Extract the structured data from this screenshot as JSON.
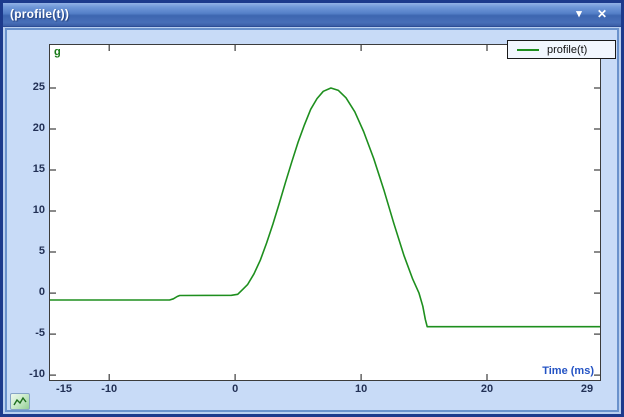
{
  "window": {
    "title": "(profile(t))",
    "controls": {
      "menu_icon": "▾",
      "close_icon": "✕"
    }
  },
  "chart_data": {
    "type": "line",
    "title": "",
    "x_title": "Time (ms)",
    "y_unit_label": "g",
    "xlim": [
      -14.7,
      28.97
    ],
    "ylim": [
      -10.6,
      30.24
    ],
    "grid": false,
    "x_tick_marks": [
      -10,
      0,
      10,
      20
    ],
    "x_tick_labels": [
      {
        "value": -15,
        "label": "-15"
      },
      {
        "value": -10,
        "label": "-10"
      },
      {
        "value": 0,
        "label": "0"
      },
      {
        "value": 10,
        "label": "10"
      },
      {
        "value": 20,
        "label": "20"
      },
      {
        "value": 29,
        "label": "29"
      }
    ],
    "y_tick_labels": [
      25,
      20,
      15,
      10,
      5,
      0,
      -5,
      -10
    ],
    "legend": {
      "position": "top-right",
      "entries": [
        {
          "label": "profile(t)",
          "color": "#1e8f1e"
        }
      ]
    },
    "series": [
      {
        "name": "profile(t)",
        "color": "#1e8f1e",
        "points": [
          [
            -14.7,
            -0.85
          ],
          [
            -5.2,
            -0.85
          ],
          [
            -4.9,
            -0.7
          ],
          [
            -4.6,
            -0.42
          ],
          [
            -4.4,
            -0.3
          ],
          [
            -0.3,
            -0.28
          ],
          [
            0.2,
            -0.15
          ],
          [
            0.6,
            0.45
          ],
          [
            1,
            1.05
          ],
          [
            1.5,
            2.35
          ],
          [
            2,
            4.0
          ],
          [
            2.5,
            6.1
          ],
          [
            3,
            8.4
          ],
          [
            3.5,
            10.9
          ],
          [
            4,
            13.5
          ],
          [
            4.5,
            16.0
          ],
          [
            5,
            18.4
          ],
          [
            5.5,
            20.5
          ],
          [
            6,
            22.4
          ],
          [
            6.5,
            23.7
          ],
          [
            7,
            24.6
          ],
          [
            7.6,
            25.0
          ],
          [
            8.2,
            24.7
          ],
          [
            8.8,
            23.8
          ],
          [
            9.5,
            22.1
          ],
          [
            10.2,
            19.7
          ],
          [
            11,
            16.4
          ],
          [
            11.8,
            12.6
          ],
          [
            12.6,
            8.5
          ],
          [
            13.4,
            4.6
          ],
          [
            14.1,
            1.7
          ],
          [
            14.6,
            0.0
          ],
          [
            14.9,
            -1.6
          ],
          [
            15.1,
            -3.2
          ],
          [
            15.25,
            -4.1
          ],
          [
            28.97,
            -4.1
          ]
        ]
      }
    ]
  },
  "colors": {
    "curve": "#1e8f1e",
    "axis": "#3c3c3c",
    "tick_label": "#223055",
    "x_title": "#2453c4",
    "y_unit": "#157815",
    "panel": "#c8dbf7",
    "window_border": "#1c3a8c"
  }
}
